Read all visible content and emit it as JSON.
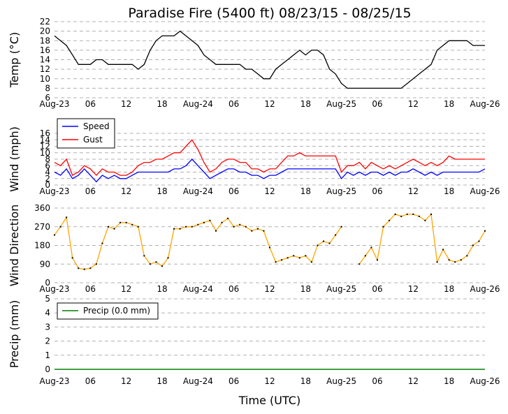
{
  "title": "Paradise Fire (5400 ft) 08/23/15 - 08/25/15",
  "xlabel": "Time (UTC)",
  "xtick_labels": [
    "Aug-23",
    "06",
    "12",
    "18",
    "Aug-24",
    "06",
    "12",
    "18",
    "Aug-25",
    "06",
    "12",
    "18",
    "Aug-26"
  ],
  "colors": {
    "temp": "#000000",
    "speed": "#0000ff",
    "gust": "#ff0000",
    "dir": "#ffa500",
    "precip": "#008000",
    "grid": "#b0b0b0"
  },
  "chart_data": [
    {
      "type": "line",
      "ylabel": "Temp (°C)",
      "ylim": [
        6,
        22
      ],
      "yticks": [
        6,
        8,
        10,
        12,
        14,
        16,
        18,
        20,
        22
      ],
      "x_hours": [
        0,
        1,
        2,
        3,
        4,
        5,
        6,
        7,
        8,
        9,
        10,
        11,
        12,
        13,
        14,
        15,
        16,
        17,
        18,
        19,
        20,
        21,
        22,
        23,
        24,
        25,
        26,
        27,
        28,
        29,
        30,
        31,
        32,
        33,
        34,
        35,
        36,
        37,
        38,
        39,
        40,
        41,
        42,
        43,
        44,
        45,
        46,
        47,
        48,
        49,
        50,
        51,
        52,
        53,
        54,
        55,
        56,
        57,
        58,
        59,
        60,
        61,
        62,
        63,
        64,
        65,
        66,
        67,
        68,
        69,
        70,
        71,
        72
      ],
      "series": [
        {
          "name": "Temp",
          "values": [
            19,
            18,
            17,
            15,
            13,
            13,
            13,
            14,
            14,
            13,
            13,
            13,
            13,
            13,
            12,
            13,
            16,
            18,
            19,
            19,
            19,
            20,
            19,
            18,
            17,
            15,
            14,
            13,
            13,
            13,
            13,
            13,
            12,
            12,
            11,
            10,
            10,
            12,
            13,
            14,
            15,
            16,
            15,
            16,
            16,
            15,
            12,
            11,
            9,
            8,
            8,
            8,
            8,
            8,
            8,
            8,
            8,
            8,
            8,
            9,
            10,
            11,
            12,
            13,
            16,
            17,
            18,
            18,
            18,
            18,
            17,
            17,
            17
          ]
        }
      ]
    },
    {
      "type": "line",
      "ylabel": "Wind (mph)",
      "ylim": [
        0,
        16
      ],
      "yticks": [
        0,
        2,
        4,
        6,
        8,
        10,
        12,
        14,
        16
      ],
      "x_hours": [
        0,
        1,
        2,
        3,
        4,
        5,
        6,
        7,
        8,
        9,
        10,
        11,
        12,
        13,
        14,
        15,
        16,
        17,
        18,
        19,
        20,
        21,
        22,
        23,
        24,
        25,
        26,
        27,
        28,
        29,
        30,
        31,
        32,
        33,
        34,
        35,
        36,
        37,
        38,
        39,
        40,
        41,
        42,
        43,
        44,
        45,
        46,
        47,
        48,
        49,
        50,
        51,
        52,
        53,
        54,
        55,
        56,
        57,
        58,
        59,
        60,
        61,
        62,
        63,
        64,
        65,
        66,
        67,
        68,
        69,
        70,
        71,
        72
      ],
      "legend": [
        "Speed",
        "Gust"
      ],
      "series": [
        {
          "name": "Speed",
          "values": [
            4,
            3,
            5,
            2,
            3,
            5,
            3,
            1,
            3,
            2,
            3,
            2,
            2,
            3,
            4,
            4,
            4,
            4,
            4,
            4,
            5,
            5,
            6,
            8,
            6,
            4,
            2,
            3,
            4,
            5,
            5,
            4,
            4,
            3,
            3,
            2,
            3,
            3,
            4,
            5,
            5,
            5,
            5,
            5,
            5,
            5,
            5,
            5,
            2,
            4,
            3,
            4,
            3,
            4,
            4,
            3,
            4,
            3,
            4,
            4,
            5,
            4,
            3,
            4,
            3,
            4,
            4,
            4,
            4,
            4,
            4,
            4,
            5
          ]
        },
        {
          "name": "Gust",
          "values": [
            7,
            6,
            8,
            3,
            4,
            6,
            5,
            3,
            5,
            4,
            4,
            3,
            3,
            4,
            6,
            7,
            7,
            8,
            8,
            9,
            10,
            10,
            12,
            14,
            11,
            7,
            4,
            5,
            7,
            8,
            8,
            7,
            7,
            5,
            5,
            4,
            5,
            5,
            7,
            9,
            9,
            10,
            9,
            9,
            9,
            9,
            9,
            9,
            4,
            6,
            6,
            7,
            5,
            7,
            6,
            5,
            6,
            5,
            6,
            7,
            8,
            7,
            6,
            7,
            6,
            7,
            9,
            8,
            8,
            8,
            8,
            8,
            8
          ]
        }
      ]
    },
    {
      "type": "line",
      "ylabel": "Wind Direction",
      "ylim": [
        0,
        360
      ],
      "yticks": [
        0,
        90,
        180,
        270,
        360
      ],
      "x_hours": [
        0,
        1,
        2,
        3,
        4,
        5,
        6,
        7,
        8,
        9,
        10,
        11,
        12,
        13,
        14,
        15,
        16,
        17,
        18,
        19,
        20,
        21,
        22,
        23,
        24,
        25,
        26,
        27,
        28,
        29,
        30,
        31,
        32,
        33,
        34,
        35,
        36,
        37,
        38,
        39,
        40,
        41,
        42,
        43,
        44,
        45,
        46,
        47,
        48,
        49,
        50,
        51,
        52,
        53,
        54,
        55,
        56,
        57,
        58,
        59,
        60,
        61,
        62,
        63,
        64,
        65,
        66,
        67,
        68,
        69,
        70,
        71,
        72
      ],
      "series": [
        {
          "name": "Direction",
          "values": [
            230,
            270,
            315,
            120,
            70,
            65,
            70,
            90,
            190,
            270,
            260,
            290,
            290,
            280,
            270,
            130,
            90,
            100,
            80,
            120,
            260,
            260,
            270,
            270,
            280,
            290,
            300,
            250,
            290,
            310,
            270,
            280,
            270,
            250,
            260,
            250,
            170,
            100,
            110,
            120,
            130,
            120,
            130,
            100,
            180,
            200,
            190,
            230,
            270,
            null,
            null,
            90,
            130,
            170,
            110,
            270,
            300,
            330,
            320,
            330,
            330,
            320,
            300,
            330,
            100,
            160,
            110,
            100,
            110,
            130,
            180,
            200,
            250
          ]
        }
      ]
    },
    {
      "type": "line",
      "ylabel": "Precip (mm)",
      "ylim": [
        0,
        5
      ],
      "yticks": [
        0,
        1,
        2,
        3,
        4,
        5
      ],
      "x_hours": [
        0,
        72
      ],
      "legend": [
        "Precip (0.0 mm)"
      ],
      "series": [
        {
          "name": "Precip (0.0 mm)",
          "values": [
            0,
            0
          ]
        }
      ]
    }
  ]
}
